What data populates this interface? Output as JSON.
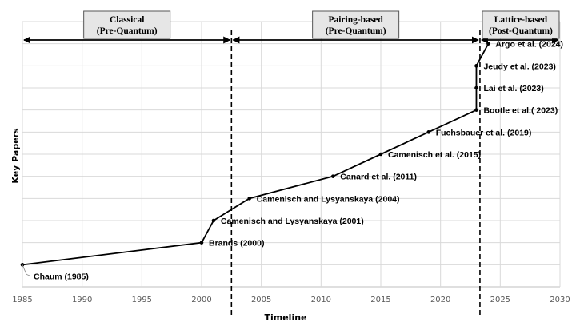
{
  "chart_data": {
    "type": "line",
    "xlabel": "Timeline",
    "ylabel": "Key Papers",
    "xlim": [
      1985,
      2030
    ],
    "ylim": [
      0,
      12
    ],
    "x_ticks": [
      "1985",
      "1990",
      "1995",
      "2000",
      "2005",
      "2010",
      "2015",
      "2020",
      "2025",
      "2030"
    ],
    "grid": true,
    "points": [
      {
        "x": 1985,
        "y": 1,
        "label": "Chaum (1985)"
      },
      {
        "x": 2000,
        "y": 2,
        "label": "Brands (2000)"
      },
      {
        "x": 2001,
        "y": 3,
        "label": "Camenisch and Lysyanskaya (2001)"
      },
      {
        "x": 2004,
        "y": 4,
        "label": "Camenisch and Lysyanskaya (2004)"
      },
      {
        "x": 2011,
        "y": 5,
        "label": "Canard et al. (2011)"
      },
      {
        "x": 2015,
        "y": 6,
        "label": "Camenisch et al. (2015)"
      },
      {
        "x": 2019,
        "y": 7,
        "label": "Fuchsbauer et al. (2019)"
      },
      {
        "x": 2023,
        "y": 8,
        "label": "Bootle  et al.( 2023)"
      },
      {
        "x": 2023,
        "y": 9,
        "label": "Lai et al. (2023)"
      },
      {
        "x": 2023,
        "y": 10,
        "label": "Jeudy et al. (2023)"
      },
      {
        "x": 2024,
        "y": 11,
        "label": "Argo et al. (2024)"
      }
    ],
    "periods": [
      {
        "title": "Classical",
        "subtitle": "(Pre-Quantum)",
        "from": 1985,
        "to": 2002.5
      },
      {
        "title": "Pairing-based",
        "subtitle": "(Pre-Quantum)",
        "from": 2002.5,
        "to": 2023.3
      },
      {
        "title": "Lattice-based",
        "subtitle": "(Post-Quantum)",
        "from": 2023.3,
        "to": 2030
      }
    ],
    "line_color": "#000000",
    "grid_color": "#d9d9d9"
  }
}
